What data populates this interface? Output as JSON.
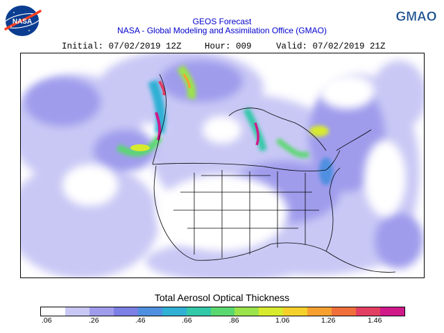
{
  "header": {
    "title": "GEOS Forecast",
    "organization": "NASA - Global Modeling and Assimilation Office (GMAO)",
    "initial": "Initial: 07/02/2019 12Z",
    "hour": "Hour: 009",
    "valid": "Valid: 07/02/2019 21Z"
  },
  "logos": {
    "left": {
      "icon": "nasa-meatball-logo",
      "text": "NASA"
    },
    "right": {
      "text": "GMAO"
    }
  },
  "map": {
    "region": "North America",
    "variable": "Total Aerosol Optical Thickness"
  },
  "colorbar": {
    "title": "Total Aerosol Optical Thickness",
    "tick_labels": [
      ".06",
      ".26",
      ".46",
      ".66",
      ".86",
      "1.06",
      "1.26",
      "1.46"
    ],
    "colors": [
      "#ffffff",
      "#c9c8f5",
      "#9f9cec",
      "#7c7fe3",
      "#4f8fe0",
      "#2fb0d4",
      "#32c8a8",
      "#5ad870",
      "#9be34a",
      "#d8ea2e",
      "#f5d02a",
      "#f7a030",
      "#ef6f3a",
      "#e23f62",
      "#d01a8a"
    ]
  }
}
